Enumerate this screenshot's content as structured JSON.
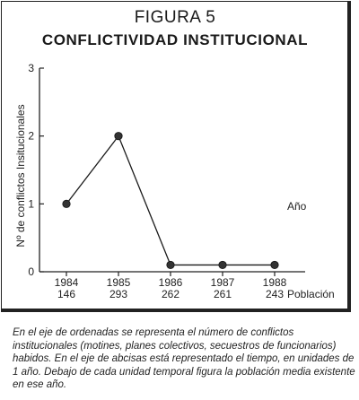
{
  "figure": {
    "label": "FIGURA 5",
    "title": "CONFLICTIVIDAD INSTITUCIONAL"
  },
  "chart_data": {
    "type": "line",
    "ylabel": "Nº de conflictos Insitucionales",
    "xlabel": "Año",
    "x_secondary_label": "Población",
    "ylim": [
      0,
      3
    ],
    "yticks": [
      "0",
      "1",
      "2",
      "3"
    ],
    "categories": [
      "1984",
      "1985",
      "1986",
      "1987",
      "1988"
    ],
    "population": [
      "146",
      "293",
      "262",
      "261",
      "243"
    ],
    "series": [
      {
        "values": [
          1,
          2,
          0.1,
          0.1,
          0.1
        ]
      }
    ],
    "grid": false,
    "legend": "none"
  },
  "caption": "En el eje de ordenadas se representa el número de conflictos institucionales (motines, planes colectivos, secuestros de funcionarios) habidos. En el eje de abcisas está representado el tiempo, en unidades de 1 año. Debajo de cada unidad temporal figura la población media existente en ese año.",
  "colors": {
    "line": "#1a1a1a",
    "marker": "#333333"
  }
}
